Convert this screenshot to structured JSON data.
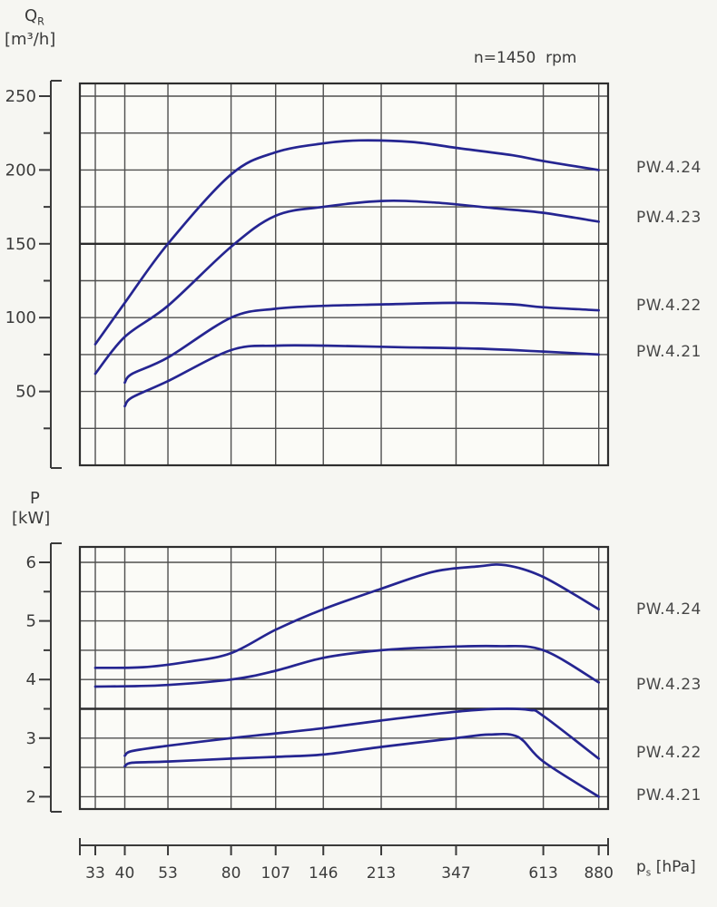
{
  "labels": {
    "flow_symbol": "Q",
    "flow_symbol_sub": "R",
    "flow_unit": "[m³/h]",
    "speed_note": "n=1450  rpm",
    "power_symbol": "P",
    "power_unit": "[kW]",
    "pressure_symbol": "p",
    "pressure_symbol_sub": "s",
    "pressure_unit": "[hPa]"
  },
  "colors": {
    "curve": "#252591",
    "grid": "#4f4f4f",
    "grid_emphasis": "#2b2b2b",
    "border": "#2e2e2e",
    "axis": "#3a3a3a",
    "background": "#f6f6f2",
    "plot_fill": "#fbfbf7",
    "text": "#3c3c3c"
  },
  "chart_data": [
    {
      "type": "line",
      "title": "Suction flow rate vs suction pressure",
      "ylabel": "Q_R [m³/h]",
      "xlabel": "p_s [hPa]",
      "x_scale": "log",
      "x_ticks": [
        33,
        40,
        53,
        80,
        107,
        146,
        213,
        347,
        613,
        880
      ],
      "x_tick_labels": [
        "33",
        "40",
        "53",
        "80",
        "107",
        "146",
        "213",
        "347",
        "613",
        "880"
      ],
      "ylim": [
        0,
        258
      ],
      "y_gridlines": [
        25,
        50,
        75,
        100,
        125,
        150,
        175,
        200,
        225,
        250
      ],
      "y_emphasis": [
        150
      ],
      "y_axis": {
        "major": [
          250,
          200,
          150,
          100,
          50
        ],
        "minor": [
          225,
          175,
          125,
          75,
          25
        ]
      },
      "grid": "on",
      "legend_position": "right-of-plot",
      "series": [
        {
          "name": "PW.4.24",
          "points": [
            [
              33,
              82
            ],
            [
              40,
              110
            ],
            [
              53,
              150
            ],
            [
              80,
              197
            ],
            [
              107,
              212
            ],
            [
              146,
              218
            ],
            [
              185,
              220
            ],
            [
              260,
              219
            ],
            [
              347,
              215
            ],
            [
              500,
              210
            ],
            [
              613,
              206
            ],
            [
              880,
              200
            ]
          ]
        },
        {
          "name": "PW.4.23",
          "points": [
            [
              33,
              62
            ],
            [
              40,
              87
            ],
            [
              53,
              108
            ],
            [
              80,
              148
            ],
            [
              107,
              169
            ],
            [
              146,
              175
            ],
            [
              213,
              179
            ],
            [
              300,
              178
            ],
            [
              450,
              174
            ],
            [
              613,
              171
            ],
            [
              880,
              165
            ]
          ]
        },
        {
          "name": "PW.4.22",
          "points": [
            [
              40,
              56
            ],
            [
              42,
              62
            ],
            [
              53,
              73
            ],
            [
              80,
              100
            ],
            [
              107,
              106
            ],
            [
              146,
              108
            ],
            [
              220,
              109
            ],
            [
              347,
              110
            ],
            [
              500,
              109
            ],
            [
              613,
              107
            ],
            [
              880,
              105
            ]
          ]
        },
        {
          "name": "PW.4.21",
          "points": [
            [
              40,
              40
            ],
            [
              42,
              46
            ],
            [
              53,
              57
            ],
            [
              80,
              78
            ],
            [
              107,
              81
            ],
            [
              150,
              81
            ],
            [
              240,
              80
            ],
            [
              400,
              79
            ],
            [
              613,
              77
            ],
            [
              880,
              75
            ]
          ]
        }
      ]
    },
    {
      "type": "line",
      "title": "Power consumption vs suction pressure",
      "ylabel": "P [kW]",
      "xlabel": "p_s [hPa]",
      "x_scale": "log",
      "x_ticks": [
        33,
        40,
        53,
        80,
        107,
        146,
        213,
        347,
        613,
        880
      ],
      "x_tick_labels": [
        "33",
        "40",
        "53",
        "80",
        "107",
        "146",
        "213",
        "347",
        "613",
        "880"
      ],
      "ylim": [
        1.8,
        6.26
      ],
      "y_gridlines": [
        2,
        2.5,
        3,
        3.5,
        4,
        4.5,
        5,
        5.5,
        6
      ],
      "y_emphasis": [
        3.5
      ],
      "y_axis": {
        "major": [
          6,
          5,
          4,
          3,
          2
        ],
        "minor": [
          5.5,
          4.5,
          3.5,
          2.5
        ]
      },
      "grid": "on",
      "legend_position": "right-of-plot",
      "series": [
        {
          "name": "PW.4.24",
          "points": [
            [
              33,
              4.2
            ],
            [
              45,
              4.21
            ],
            [
              60,
              4.3
            ],
            [
              80,
              4.45
            ],
            [
              107,
              4.85
            ],
            [
              146,
              5.2
            ],
            [
              213,
              5.55
            ],
            [
              300,
              5.84
            ],
            [
              400,
              5.93
            ],
            [
              480,
              5.95
            ],
            [
              613,
              5.75
            ],
            [
              880,
              5.2
            ]
          ]
        },
        {
          "name": "PW.4.23",
          "points": [
            [
              33,
              3.88
            ],
            [
              50,
              3.9
            ],
            [
              80,
              4.0
            ],
            [
              107,
              4.15
            ],
            [
              146,
              4.37
            ],
            [
              213,
              4.5
            ],
            [
              300,
              4.55
            ],
            [
              450,
              4.57
            ],
            [
              613,
              4.5
            ],
            [
              880,
              3.95
            ]
          ]
        },
        {
          "name": "PW.4.22",
          "points": [
            [
              40,
              2.7
            ],
            [
              42,
              2.78
            ],
            [
              53,
              2.87
            ],
            [
              80,
              3.0
            ],
            [
              107,
              3.08
            ],
            [
              146,
              3.17
            ],
            [
              213,
              3.3
            ],
            [
              347,
              3.45
            ],
            [
              460,
              3.5
            ],
            [
              560,
              3.48
            ],
            [
              613,
              3.38
            ],
            [
              880,
              2.65
            ]
          ]
        },
        {
          "name": "PW.4.21",
          "points": [
            [
              40,
              2.52
            ],
            [
              42,
              2.58
            ],
            [
              53,
              2.6
            ],
            [
              80,
              2.65
            ],
            [
              107,
              2.68
            ],
            [
              146,
              2.72
            ],
            [
              213,
              2.85
            ],
            [
              347,
              3.0
            ],
            [
              430,
              3.06
            ],
            [
              520,
              3.02
            ],
            [
              613,
              2.6
            ],
            [
              880,
              2.0
            ]
          ]
        }
      ]
    }
  ]
}
